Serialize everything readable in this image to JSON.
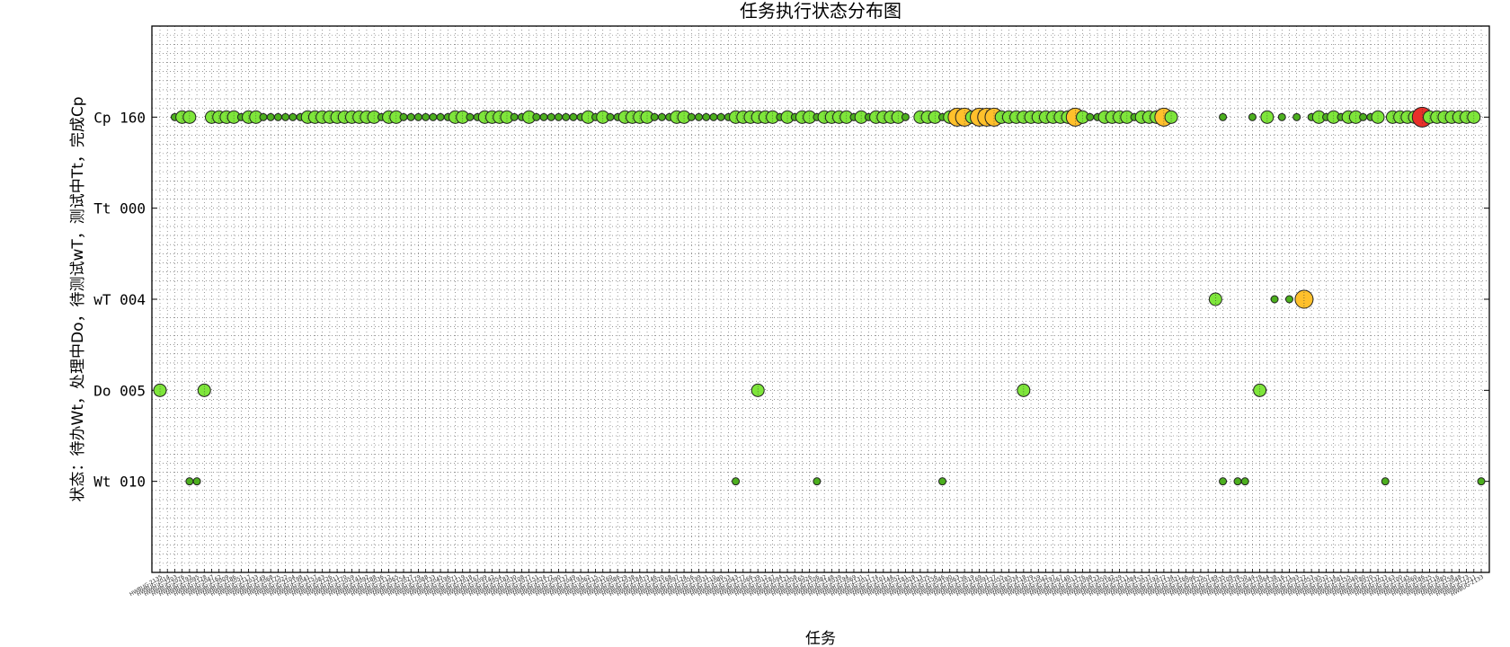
{
  "chart_data": {
    "type": "scatter",
    "title": "任务执行状态分布图",
    "xlabel": "任务",
    "ylabel": "状态：待办Wt，处理中Do，待测试wT，测试中Tt，完成Cp",
    "y_ticks": [
      {
        "label": "Wt 010",
        "value": 1
      },
      {
        "label": "Do 005",
        "value": 2
      },
      {
        "label": "wT 004",
        "value": 3
      },
      {
        "label": "Tt 000",
        "value": 4
      },
      {
        "label": "Cp 160",
        "value": 5
      }
    ],
    "ylim": [
      0,
      6
    ],
    "grid": true,
    "task_count": 180,
    "size_levels": {
      "1": "small",
      "2": "medium",
      "3": "large",
      "4": "largest"
    },
    "colors": {
      "small": "#4caf1e",
      "medium": "#7ee63a",
      "large": "#ffc02b",
      "largest": "#e8302a",
      "edge": "#222222",
      "grid": "#555555"
    },
    "x_tick_labels": [
      "HWBUG-2135",
      "HWBUG-2014",
      "HWBUG-2203",
      "HWBUG-2076",
      "HWBUG-2193",
      "HWBUG-2095",
      "HWBUG-2128",
      "HWBUG-2047",
      "HWBUG-2162",
      "HWBUG-2009",
      "HWBUG-2186",
      "HWBUG-2051",
      "HWBUG-2117",
      "HWBUG-2033",
      "HWBUG-2149",
      "HWBUG-2068",
      "HWBUG-2175",
      "HWBUG-2022",
      "HWBUG-2104",
      "HWBUG-2198",
      "HWBUG-2041",
      "HWBUG-2157",
      "HWBUG-2083",
      "HWBUG-2126",
      "HWBUG-2011",
      "HWBUG-2170",
      "HWBUG-2059",
      "HWBUG-2141",
      "HWBUG-2092",
      "HWBUG-2188",
      "HWBUG-2036",
      "HWBUG-2112",
      "HWBUG-2065",
      "HWBUG-2154",
      "HWBUG-2027",
      "HWBUG-2179",
      "HWBUG-2088",
      "HWBUG-2133",
      "HWBUG-2045",
      "HWBUG-2196",
      "HWBUG-2071",
      "HWBUG-2119",
      "HWBUG-2018",
      "HWBUG-2167",
      "HWBUG-2099",
      "HWBUG-2142",
      "HWBUG-2054",
      "HWBUG-2183",
      "HWBUG-2030",
      "HWBUG-2108",
      "HWBUG-2077",
      "HWBUG-2151",
      "HWBUG-2024",
      "HWBUG-2172",
      "HWBUG-2090",
      "HWBUG-2137",
      "HWBUG-2049",
      "HWBUG-2191",
      "HWBUG-2062",
      "HWBUG-2115",
      "HWBUG-2015",
      "HWBUG-2160",
      "HWBUG-2086",
      "HWBUG-2129",
      "HWBUG-2038",
      "HWBUG-2184",
      "HWBUG-2073",
      "HWBUG-2146",
      "HWBUG-2020",
      "HWBUG-2168",
      "HWBUG-2097",
      "HWBUG-2124",
      "HWBUG-2056",
      "HWBUG-2199",
      "HWBUG-2031",
      "HWBUG-2110",
      "HWBUG-2080",
      "HWBUG-2153",
      "HWBUG-2043",
      "HWBUG-2177",
      "HWBUG-2066",
      "HWBUG-2139",
      "HWBUG-2012",
      "HWBUG-2187",
      "HWBUG-2094",
      "HWBUG-2121",
      "HWBUG-2058",
      "HWBUG-2165",
      "HWBUG-2026",
      "HWBUG-2106",
      "HWBUG-2082",
      "HWBUG-2148",
      "HWBUG-2039",
      "HWBUG-2194",
      "HWBUG-2069",
      "HWBUG-2131",
      "HWBUG-2017",
      "HWBUG-2174",
      "HWBUG-2101",
      "HWBUG-2144",
      "HWBUG-2052",
      "HWBUG-2181",
      "HWBUG-2028",
      "HWBUG-2113",
      "HWBUG-2075",
      "HWBUG-2156",
      "HWBUG-2046",
      "HWBUG-2190",
      "HWBUG-2063",
      "HWBUG-2136",
      "HWBUG-2019",
      "HWBUG-2169",
      "HWBUG-2091",
      "HWBUG-2127",
      "HWBUG-2055",
      "HWBUG-2185",
      "HWBUG-2034",
      "HWBUG-2118",
      "HWBUG-2079",
      "HWBUG-2159",
      "HWBUG-2042",
      "HWBUG-2197",
      "HWBUG-2067",
      "HWBUG-2140",
      "HWBUG-2013",
      "HWBUG-2176",
      "HWBUG-2098",
      "HWBUG-2123",
      "HWBUG-2050",
      "HWBUG-2182",
      "HWBUG-2029",
      "HWBUG-2111",
      "HWBUG-2084",
      "HWBUG-2152",
      "HWBUG-2037",
      "HWBUG-2192",
      "HWBUG-2072",
      "HWBUG-2134",
      "HWBUG-2021",
      "HWBUG-2166",
      "HWBUG-2096",
      "HWBUG-2125",
      "HWBUG-2057",
      "HWBUG-2189",
      "HWBUG-2035",
      "HWBUG-2109",
      "HWBUG-2078",
      "HWBUG-2150",
      "HWBUG-2044",
      "HWBUG-2178",
      "HWBUG-2064",
      "HWBUG-2138",
      "HWBUG-2016",
      "HWBUG-2171",
      "HWBUG-2093",
      "HWBUG-2122",
      "HWBUG-2053",
      "HWBUG-2195",
      "HWBUG-2032",
      "HWBUG-2114",
      "HWBUG-2081",
      "HWBUG-2155",
      "HWBUG-2040",
      "HWBUG-2180",
      "HWBUG-2070",
      "HWBUG-2132",
      "HWBUG-2023",
      "HWBUG-2163",
      "HWBUG-2100",
      "HWBUG-2145",
      "HWBUG-2060",
      "HWBUG-2186",
      "HWBUG-2025",
      "HWBUG-2116",
      "HWBUG-2085",
      "HWBUG-2158",
      "HWBUG-2048",
      "HWBUG-2173",
      "HWBUG-2211",
      "HWBUG-2133"
    ],
    "points": [
      {
        "x": 0,
        "y": 2,
        "s": 2
      },
      {
        "x": 2,
        "y": 5,
        "s": 1
      },
      {
        "x": 3,
        "y": 5,
        "s": 2
      },
      {
        "x": 4,
        "y": 5,
        "s": 2
      },
      {
        "x": 4,
        "y": 1,
        "s": 1
      },
      {
        "x": 5,
        "y": 1,
        "s": 1
      },
      {
        "x": 6,
        "y": 2,
        "s": 2
      },
      {
        "x": 7,
        "y": 5,
        "s": 2
      },
      {
        "x": 8,
        "y": 5,
        "s": 2
      },
      {
        "x": 9,
        "y": 5,
        "s": 2
      },
      {
        "x": 10,
        "y": 5,
        "s": 2
      },
      {
        "x": 11,
        "y": 5,
        "s": 1
      },
      {
        "x": 12,
        "y": 5,
        "s": 2
      },
      {
        "x": 13,
        "y": 5,
        "s": 2
      },
      {
        "x": 14,
        "y": 5,
        "s": 1
      },
      {
        "x": 15,
        "y": 5,
        "s": 1
      },
      {
        "x": 16,
        "y": 5,
        "s": 1
      },
      {
        "x": 17,
        "y": 5,
        "s": 1
      },
      {
        "x": 18,
        "y": 5,
        "s": 1
      },
      {
        "x": 19,
        "y": 5,
        "s": 1
      },
      {
        "x": 20,
        "y": 5,
        "s": 2
      },
      {
        "x": 21,
        "y": 5,
        "s": 2
      },
      {
        "x": 22,
        "y": 5,
        "s": 2
      },
      {
        "x": 23,
        "y": 5,
        "s": 2
      },
      {
        "x": 24,
        "y": 5,
        "s": 2
      },
      {
        "x": 25,
        "y": 5,
        "s": 2
      },
      {
        "x": 26,
        "y": 5,
        "s": 2
      },
      {
        "x": 27,
        "y": 5,
        "s": 2
      },
      {
        "x": 28,
        "y": 5,
        "s": 2
      },
      {
        "x": 29,
        "y": 5,
        "s": 2
      },
      {
        "x": 30,
        "y": 5,
        "s": 1
      },
      {
        "x": 31,
        "y": 5,
        "s": 2
      },
      {
        "x": 32,
        "y": 5,
        "s": 2
      },
      {
        "x": 33,
        "y": 5,
        "s": 1
      },
      {
        "x": 34,
        "y": 5,
        "s": 1
      },
      {
        "x": 35,
        "y": 5,
        "s": 1
      },
      {
        "x": 36,
        "y": 5,
        "s": 1
      },
      {
        "x": 37,
        "y": 5,
        "s": 1
      },
      {
        "x": 38,
        "y": 5,
        "s": 1
      },
      {
        "x": 39,
        "y": 5,
        "s": 1
      },
      {
        "x": 40,
        "y": 5,
        "s": 2
      },
      {
        "x": 41,
        "y": 5,
        "s": 2
      },
      {
        "x": 42,
        "y": 5,
        "s": 1
      },
      {
        "x": 43,
        "y": 5,
        "s": 1
      },
      {
        "x": 44,
        "y": 5,
        "s": 2
      },
      {
        "x": 45,
        "y": 5,
        "s": 2
      },
      {
        "x": 46,
        "y": 5,
        "s": 2
      },
      {
        "x": 47,
        "y": 5,
        "s": 2
      },
      {
        "x": 48,
        "y": 5,
        "s": 1
      },
      {
        "x": 49,
        "y": 5,
        "s": 1
      },
      {
        "x": 50,
        "y": 5,
        "s": 2
      },
      {
        "x": 51,
        "y": 5,
        "s": 1
      },
      {
        "x": 52,
        "y": 5,
        "s": 1
      },
      {
        "x": 53,
        "y": 5,
        "s": 1
      },
      {
        "x": 54,
        "y": 5,
        "s": 1
      },
      {
        "x": 55,
        "y": 5,
        "s": 1
      },
      {
        "x": 56,
        "y": 5,
        "s": 1
      },
      {
        "x": 57,
        "y": 5,
        "s": 1
      },
      {
        "x": 58,
        "y": 5,
        "s": 2
      },
      {
        "x": 59,
        "y": 5,
        "s": 1
      },
      {
        "x": 60,
        "y": 5,
        "s": 2
      },
      {
        "x": 61,
        "y": 5,
        "s": 1
      },
      {
        "x": 62,
        "y": 5,
        "s": 1
      },
      {
        "x": 63,
        "y": 5,
        "s": 2
      },
      {
        "x": 64,
        "y": 5,
        "s": 2
      },
      {
        "x": 65,
        "y": 5,
        "s": 2
      },
      {
        "x": 66,
        "y": 5,
        "s": 2
      },
      {
        "x": 67,
        "y": 5,
        "s": 1
      },
      {
        "x": 68,
        "y": 5,
        "s": 1
      },
      {
        "x": 69,
        "y": 5,
        "s": 1
      },
      {
        "x": 70,
        "y": 5,
        "s": 2
      },
      {
        "x": 71,
        "y": 5,
        "s": 2
      },
      {
        "x": 72,
        "y": 5,
        "s": 1
      },
      {
        "x": 73,
        "y": 5,
        "s": 1
      },
      {
        "x": 74,
        "y": 5,
        "s": 1
      },
      {
        "x": 75,
        "y": 5,
        "s": 1
      },
      {
        "x": 76,
        "y": 5,
        "s": 1
      },
      {
        "x": 77,
        "y": 5,
        "s": 1
      },
      {
        "x": 78,
        "y": 5,
        "s": 2
      },
      {
        "x": 79,
        "y": 5,
        "s": 2
      },
      {
        "x": 80,
        "y": 5,
        "s": 2
      },
      {
        "x": 78,
        "y": 1,
        "s": 1
      },
      {
        "x": 81,
        "y": 5,
        "s": 2
      },
      {
        "x": 81,
        "y": 2,
        "s": 2
      },
      {
        "x": 82,
        "y": 5,
        "s": 2
      },
      {
        "x": 83,
        "y": 5,
        "s": 2
      },
      {
        "x": 84,
        "y": 5,
        "s": 1
      },
      {
        "x": 85,
        "y": 5,
        "s": 2
      },
      {
        "x": 86,
        "y": 5,
        "s": 1
      },
      {
        "x": 87,
        "y": 5,
        "s": 2
      },
      {
        "x": 88,
        "y": 5,
        "s": 2
      },
      {
        "x": 89,
        "y": 5,
        "s": 1
      },
      {
        "x": 90,
        "y": 5,
        "s": 2
      },
      {
        "x": 89,
        "y": 1,
        "s": 1
      },
      {
        "x": 91,
        "y": 5,
        "s": 2
      },
      {
        "x": 92,
        "y": 5,
        "s": 2
      },
      {
        "x": 93,
        "y": 5,
        "s": 2
      },
      {
        "x": 94,
        "y": 5,
        "s": 1
      },
      {
        "x": 95,
        "y": 5,
        "s": 2
      },
      {
        "x": 96,
        "y": 5,
        "s": 1
      },
      {
        "x": 97,
        "y": 5,
        "s": 2
      },
      {
        "x": 98,
        "y": 5,
        "s": 2
      },
      {
        "x": 99,
        "y": 5,
        "s": 2
      },
      {
        "x": 100,
        "y": 5,
        "s": 2
      },
      {
        "x": 101,
        "y": 5,
        "s": 1
      },
      {
        "x": 103,
        "y": 5,
        "s": 2
      },
      {
        "x": 104,
        "y": 5,
        "s": 2
      },
      {
        "x": 105,
        "y": 5,
        "s": 2
      },
      {
        "x": 106,
        "y": 5,
        "s": 1
      },
      {
        "x": 107,
        "y": 5,
        "s": 2
      },
      {
        "x": 108,
        "y": 5,
        "s": 3
      },
      {
        "x": 109,
        "y": 5,
        "s": 3
      },
      {
        "x": 110,
        "y": 5,
        "s": 2
      },
      {
        "x": 111,
        "y": 5,
        "s": 3
      },
      {
        "x": 112,
        "y": 5,
        "s": 3
      },
      {
        "x": 113,
        "y": 5,
        "s": 3
      },
      {
        "x": 106,
        "y": 1,
        "s": 1
      },
      {
        "x": 114,
        "y": 5,
        "s": 2
      },
      {
        "x": 115,
        "y": 5,
        "s": 2
      },
      {
        "x": 116,
        "y": 5,
        "s": 2
      },
      {
        "x": 117,
        "y": 5,
        "s": 2
      },
      {
        "x": 118,
        "y": 5,
        "s": 2
      },
      {
        "x": 119,
        "y": 5,
        "s": 2
      },
      {
        "x": 120,
        "y": 5,
        "s": 2
      },
      {
        "x": 117,
        "y": 2,
        "s": 2
      },
      {
        "x": 121,
        "y": 5,
        "s": 2
      },
      {
        "x": 122,
        "y": 5,
        "s": 2
      },
      {
        "x": 123,
        "y": 5,
        "s": 2
      },
      {
        "x": 124,
        "y": 5,
        "s": 3
      },
      {
        "x": 125,
        "y": 5,
        "s": 2
      },
      {
        "x": 126,
        "y": 5,
        "s": 1
      },
      {
        "x": 127,
        "y": 5,
        "s": 1
      },
      {
        "x": 128,
        "y": 5,
        "s": 2
      },
      {
        "x": 129,
        "y": 5,
        "s": 2
      },
      {
        "x": 130,
        "y": 5,
        "s": 2
      },
      {
        "x": 131,
        "y": 5,
        "s": 2
      },
      {
        "x": 132,
        "y": 5,
        "s": 1
      },
      {
        "x": 133,
        "y": 5,
        "s": 2
      },
      {
        "x": 134,
        "y": 5,
        "s": 2
      },
      {
        "x": 135,
        "y": 5,
        "s": 2
      },
      {
        "x": 136,
        "y": 5,
        "s": 3
      },
      {
        "x": 137,
        "y": 5,
        "s": 2
      },
      {
        "x": 143,
        "y": 3,
        "s": 2
      },
      {
        "x": 144,
        "y": 5,
        "s": 1
      },
      {
        "x": 144,
        "y": 1,
        "s": 1
      },
      {
        "x": 146,
        "y": 1,
        "s": 1
      },
      {
        "x": 147,
        "y": 1,
        "s": 1
      },
      {
        "x": 148,
        "y": 5,
        "s": 1
      },
      {
        "x": 149,
        "y": 2,
        "s": 2
      },
      {
        "x": 150,
        "y": 5,
        "s": 2
      },
      {
        "x": 151,
        "y": 3,
        "s": 1
      },
      {
        "x": 152,
        "y": 5,
        "s": 1
      },
      {
        "x": 153,
        "y": 3,
        "s": 1
      },
      {
        "x": 154,
        "y": 5,
        "s": 1
      },
      {
        "x": 155,
        "y": 3,
        "s": 3
      },
      {
        "x": 156,
        "y": 5,
        "s": 1
      },
      {
        "x": 157,
        "y": 5,
        "s": 2
      },
      {
        "x": 158,
        "y": 5,
        "s": 1
      },
      {
        "x": 159,
        "y": 5,
        "s": 2
      },
      {
        "x": 160,
        "y": 5,
        "s": 1
      },
      {
        "x": 161,
        "y": 5,
        "s": 2
      },
      {
        "x": 162,
        "y": 5,
        "s": 2
      },
      {
        "x": 163,
        "y": 5,
        "s": 1
      },
      {
        "x": 164,
        "y": 5,
        "s": 1
      },
      {
        "x": 165,
        "y": 5,
        "s": 2
      },
      {
        "x": 166,
        "y": 1,
        "s": 1
      },
      {
        "x": 167,
        "y": 5,
        "s": 2
      },
      {
        "x": 168,
        "y": 5,
        "s": 2
      },
      {
        "x": 169,
        "y": 5,
        "s": 2
      },
      {
        "x": 170,
        "y": 5,
        "s": 2
      },
      {
        "x": 171,
        "y": 5,
        "s": 4
      },
      {
        "x": 172,
        "y": 5,
        "s": 2
      },
      {
        "x": 173,
        "y": 5,
        "s": 2
      },
      {
        "x": 174,
        "y": 5,
        "s": 2
      },
      {
        "x": 175,
        "y": 5,
        "s": 2
      },
      {
        "x": 176,
        "y": 5,
        "s": 2
      },
      {
        "x": 177,
        "y": 5,
        "s": 2
      },
      {
        "x": 178,
        "y": 5,
        "s": 2
      },
      {
        "x": 179,
        "y": 1,
        "s": 1
      }
    ]
  }
}
